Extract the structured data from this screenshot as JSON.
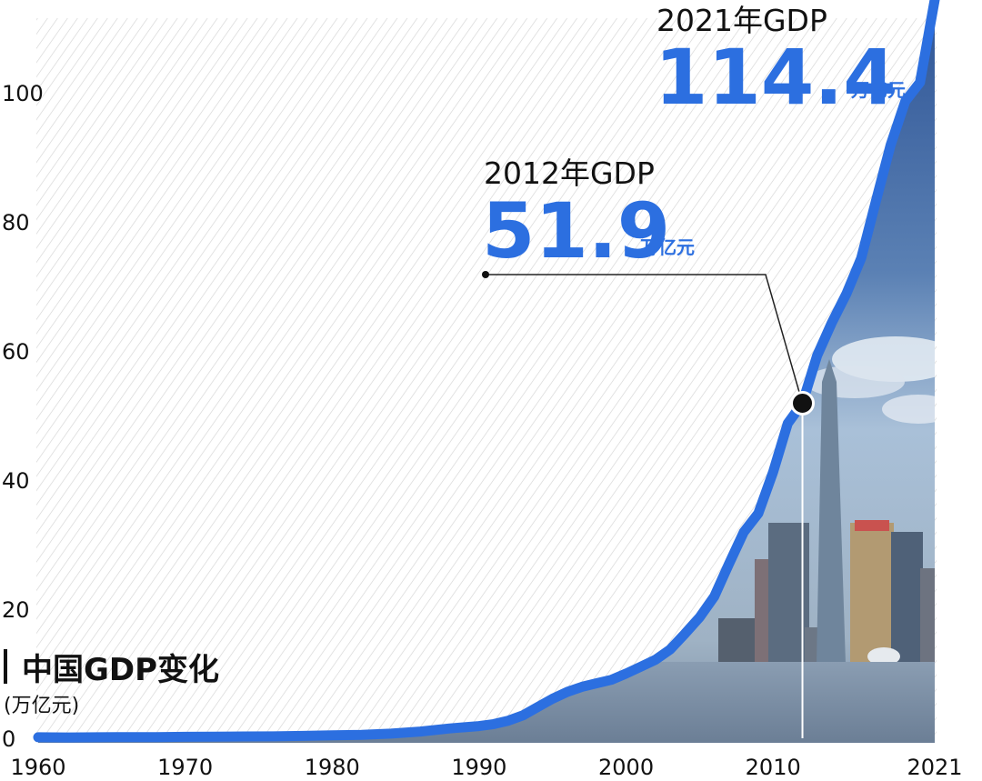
{
  "chart_data": {
    "type": "area",
    "title": "中国GDP变化",
    "subtitle": "(万亿元)",
    "x_ticks": [
      "1960",
      "1970",
      "1980",
      "1990",
      "2000",
      "2010",
      "2021"
    ],
    "y_ticks": [
      "0",
      "20",
      "40",
      "60",
      "80",
      "100"
    ],
    "xlim": [
      1960,
      2021
    ],
    "ylim": [
      0,
      112
    ],
    "grid": false,
    "series": [
      {
        "x": [
          1960,
          1962,
          1964,
          1966,
          1968,
          1970,
          1972,
          1974,
          1976,
          1978,
          1980,
          1982,
          1984,
          1986,
          1988,
          1989,
          1990,
          1991,
          1992,
          1993,
          1994,
          1995,
          1996,
          1997,
          1998,
          1999,
          2000,
          2001,
          2002,
          2003,
          2004,
          2005,
          2006,
          2007,
          2008,
          2009,
          2010,
          2011,
          2012,
          2013,
          2014,
          2015,
          2016,
          2017,
          2018,
          2019,
          2020,
          2021
        ],
        "values": [
          0.15,
          0.13,
          0.15,
          0.19,
          0.17,
          0.23,
          0.25,
          0.28,
          0.3,
          0.37,
          0.46,
          0.53,
          0.72,
          1.04,
          1.52,
          1.7,
          1.89,
          2.2,
          2.73,
          3.57,
          4.86,
          6.13,
          7.18,
          7.97,
          8.52,
          9.06,
          10.03,
          11.09,
          12.17,
          13.74,
          16.18,
          18.73,
          21.94,
          27.01,
          31.92,
          34.85,
          41.21,
          48.79,
          51.9,
          59.3,
          64.4,
          68.9,
          74.4,
          83.2,
          91.9,
          98.7,
          101.6,
          114.4
        ]
      }
    ],
    "annotations": [
      {
        "year_label": "2012年GDP",
        "value": "51.9",
        "unit": "万亿元",
        "x": 2012,
        "y": 51.9
      },
      {
        "year_label": "2021年GDP",
        "value": "114.4",
        "unit": "万亿元",
        "x": 2021,
        "y": 114.4
      }
    ],
    "colors": {
      "line": "#2c6fe0",
      "accent_text": "#2c6fe0",
      "hatch": "#d4d4d4",
      "sky": "#8fb0d0",
      "water": "#6f8aa8"
    }
  }
}
